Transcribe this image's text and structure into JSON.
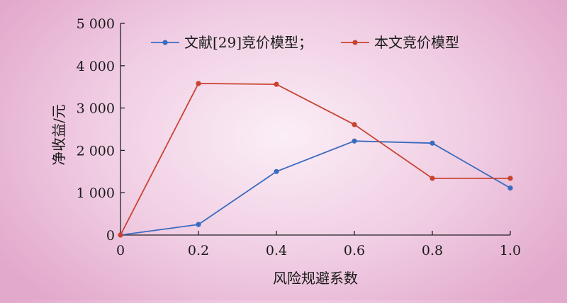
{
  "chart_data": {
    "type": "line",
    "title": "",
    "xlabel": "风险规避系数",
    "ylabel": "净收益/元",
    "x": [
      0,
      0.2,
      0.4,
      0.6,
      0.8,
      1.0
    ],
    "x_tick_labels": [
      "0",
      "0.2",
      "0.4",
      "0.6",
      "0.8",
      "1.0"
    ],
    "xlim": [
      0,
      1.0
    ],
    "ylim": [
      0,
      5000
    ],
    "y_ticks": [
      0,
      1000,
      2000,
      3000,
      4000,
      5000
    ],
    "y_tick_labels": [
      "0",
      "1 000",
      "2 000",
      "3 000",
      "4 000",
      "5 000"
    ],
    "grid": false,
    "legend_position": "top",
    "series": [
      {
        "name": "文献[29]竞价模型；",
        "color": "#3a6bbf",
        "values": [
          0,
          250,
          1500,
          2220,
          2170,
          1110
        ]
      },
      {
        "name": "本文竞价模型",
        "color": "#c8432f",
        "values": [
          0,
          3580,
          3560,
          2610,
          1340,
          1340
        ]
      }
    ]
  }
}
